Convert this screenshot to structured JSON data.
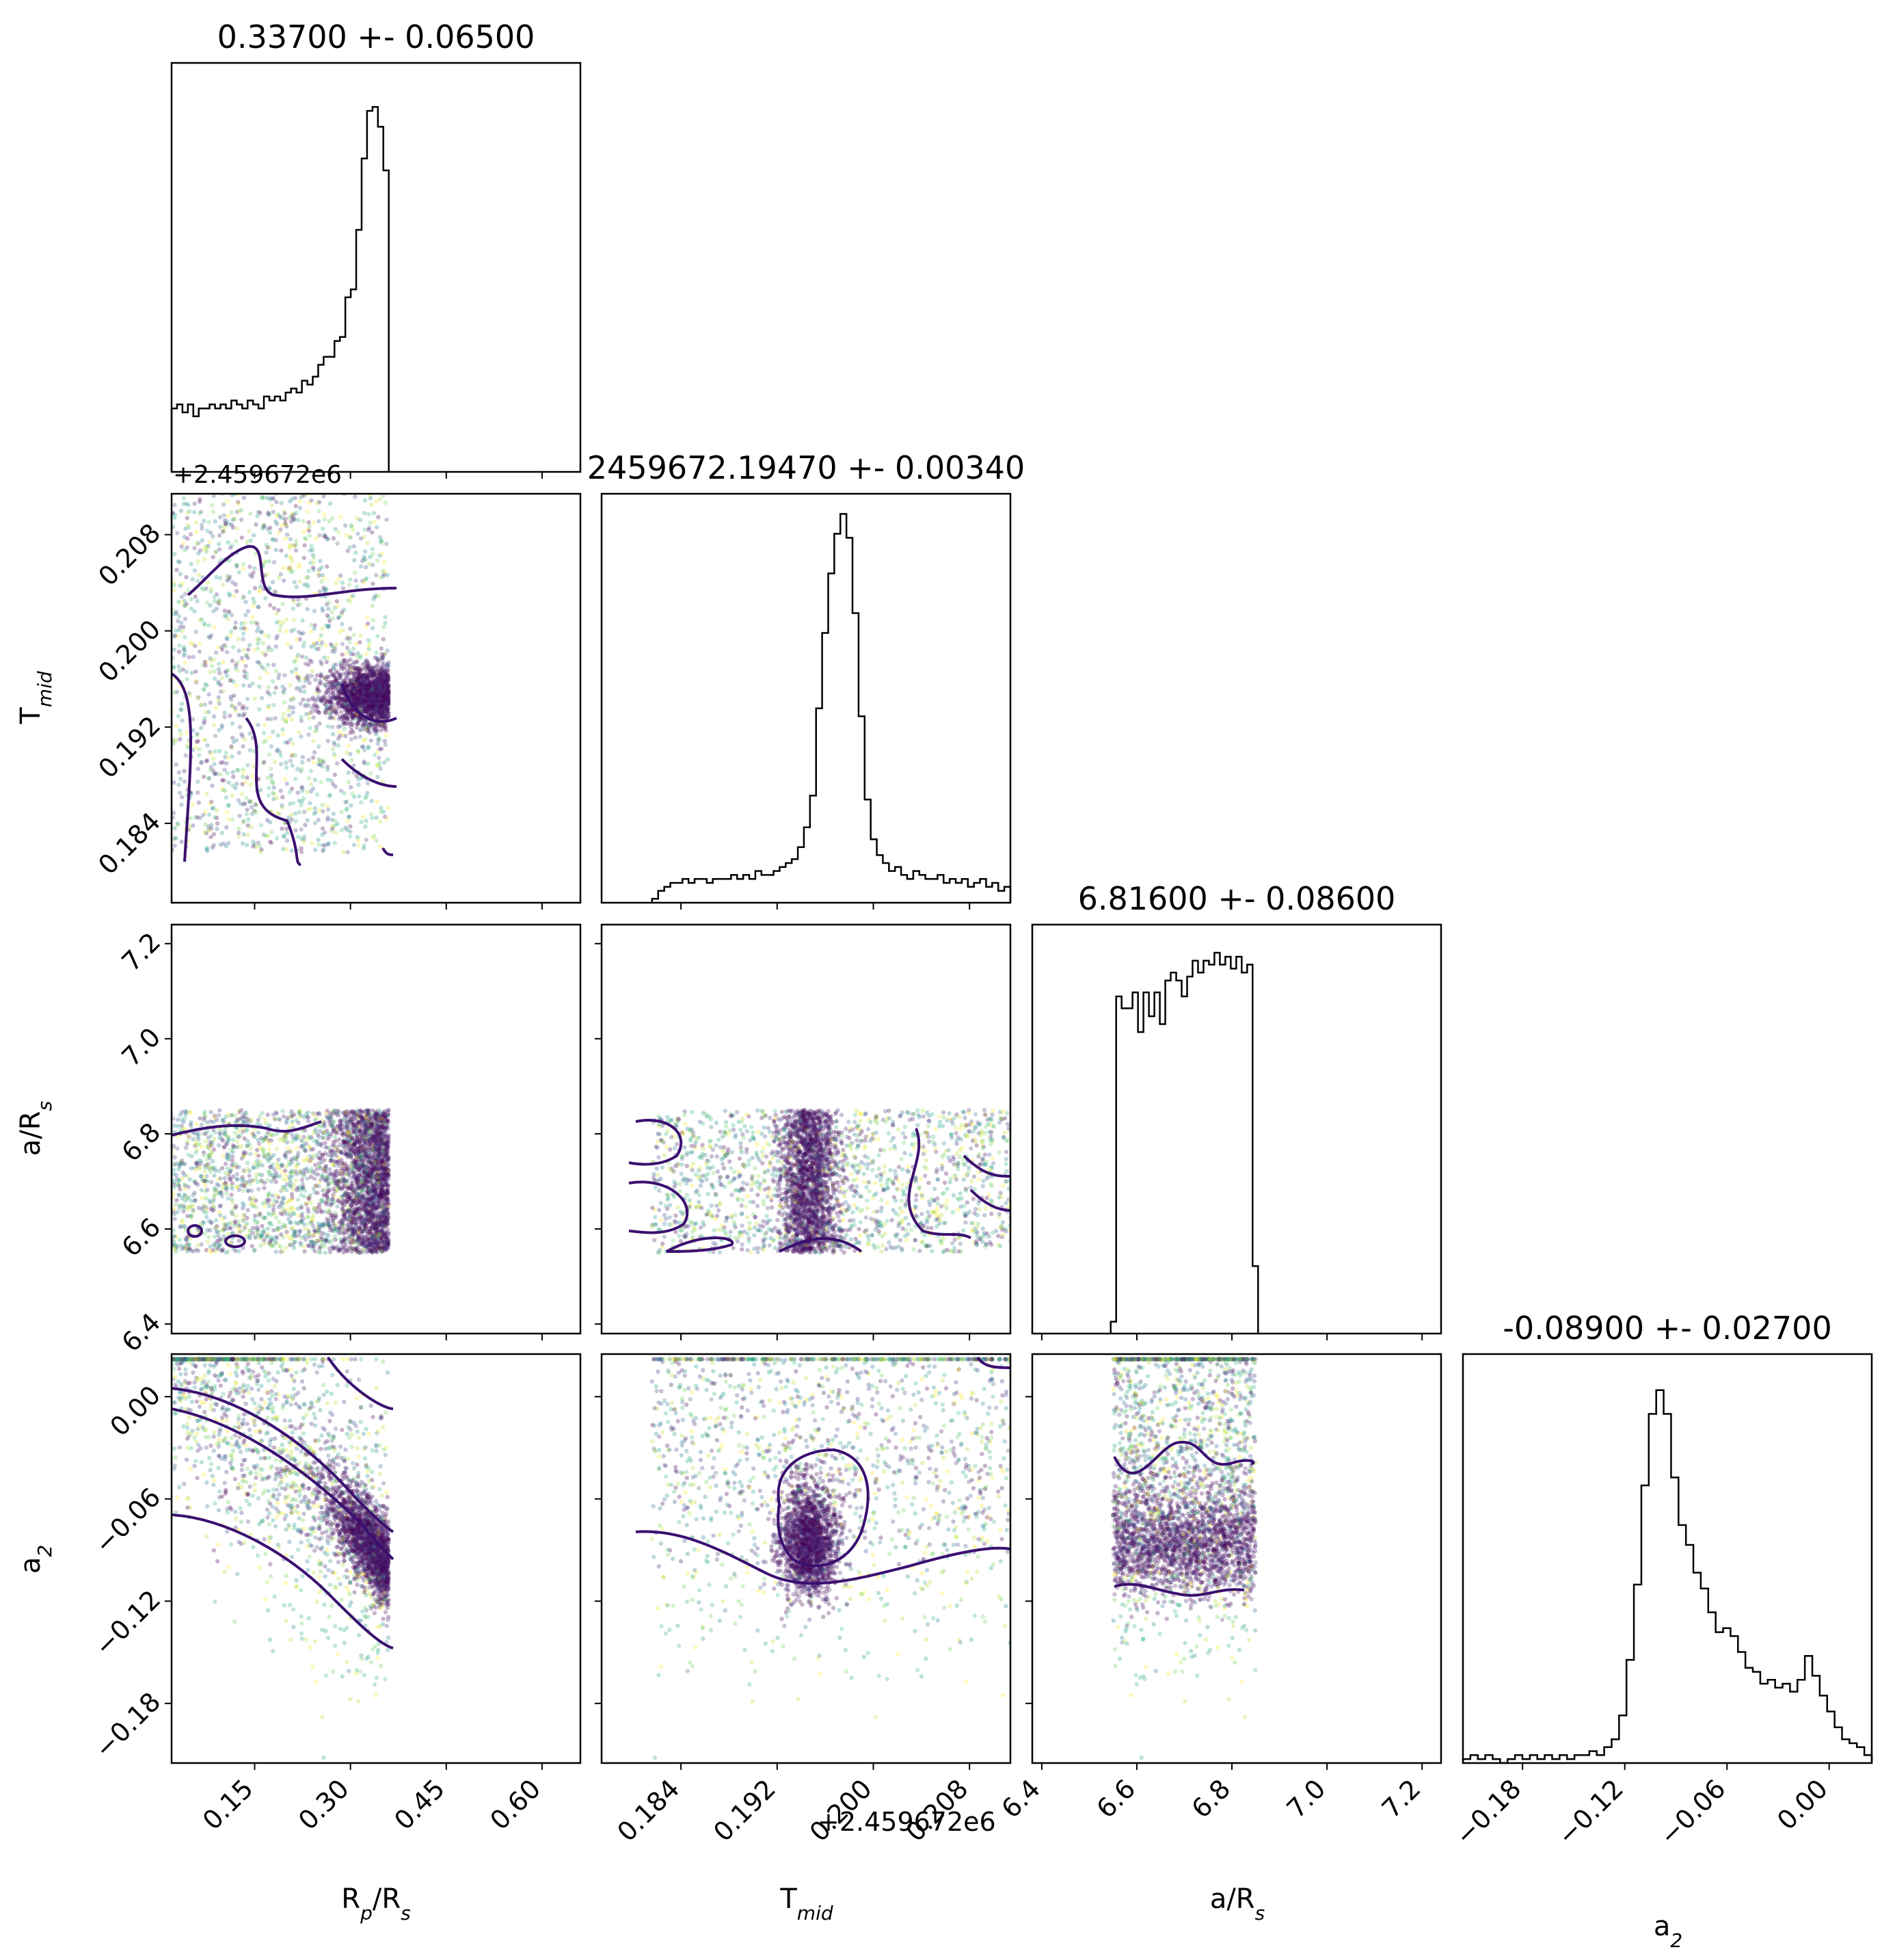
{
  "chart_data": {
    "type": "corner",
    "parameters": [
      {
        "key": "rp",
        "label": "R",
        "label_sub": "p",
        "label_tail": "/R",
        "label_tail_sub": "s",
        "title": "0.33700 +- 0.06500",
        "range": [
          0.02,
          0.66
        ],
        "ticks": [
          0.15,
          0.3,
          0.45,
          0.6
        ],
        "tick_labels": [
          "0.15",
          "0.30",
          "0.45",
          "0.60"
        ],
        "offset_label": "",
        "hist": [
          0.16,
          0.17,
          0.15,
          0.17,
          0.14,
          0.16,
          0.16,
          0.17,
          0.16,
          0.17,
          0.16,
          0.18,
          0.17,
          0.16,
          0.18,
          0.17,
          0.16,
          0.19,
          0.18,
          0.19,
          0.18,
          0.2,
          0.21,
          0.2,
          0.23,
          0.22,
          0.24,
          0.27,
          0.29,
          0.29,
          0.33,
          0.34,
          0.44,
          0.46,
          0.61,
          0.79,
          0.91,
          0.92,
          0.87,
          0.76
        ],
        "hist_range": [
          0.02,
          0.36
        ]
      },
      {
        "key": "tmid",
        "label": "T",
        "label_sub": "mid",
        "label_tail": "",
        "label_tail_sub": "",
        "title": "2459672.19470 +- 0.00340",
        "range": [
          0.1774,
          0.2114
        ],
        "ticks": [
          0.184,
          0.192,
          0.2,
          0.208
        ],
        "tick_labels": [
          "0.184",
          "0.192",
          "0.200",
          "0.208"
        ],
        "offset_label": "+2.459672e6",
        "hist": [
          0.01,
          0.03,
          0.04,
          0.05,
          0.05,
          0.06,
          0.05,
          0.06,
          0.06,
          0.05,
          0.06,
          0.06,
          0.06,
          0.07,
          0.06,
          0.07,
          0.06,
          0.08,
          0.07,
          0.07,
          0.08,
          0.09,
          0.1,
          0.11,
          0.14,
          0.19,
          0.27,
          0.49,
          0.68,
          0.83,
          0.93,
          0.98,
          0.92,
          0.73,
          0.47,
          0.26,
          0.16,
          0.12,
          0.1,
          0.08,
          0.09,
          0.07,
          0.06,
          0.08,
          0.07,
          0.06,
          0.06,
          0.07,
          0.05,
          0.06,
          0.05,
          0.06,
          0.04,
          0.05,
          0.06,
          0.04,
          0.05,
          0.03,
          0.04
        ],
        "hist_range": [
          0.1816,
          0.2114
        ]
      },
      {
        "key": "ars",
        "label": "a/R",
        "label_sub": "s",
        "label_tail": "",
        "label_tail_sub": "",
        "title": "6.81600 +- 0.08600",
        "range": [
          6.38,
          7.24
        ],
        "ticks": [
          6.4,
          6.6,
          6.8,
          7.0,
          7.2
        ],
        "tick_labels": [
          "6.4",
          "6.6",
          "6.8",
          "7.0",
          "7.2"
        ],
        "offset_label": "",
        "hist": [
          0.03,
          0.85,
          0.82,
          0.82,
          0.86,
          0.76,
          0.86,
          0.8,
          0.86,
          0.78,
          0.89,
          0.91,
          0.89,
          0.85,
          0.9,
          0.94,
          0.91,
          0.94,
          0.93,
          0.96,
          0.93,
          0.95,
          0.92,
          0.95,
          0.91,
          0.93,
          0.17
        ],
        "hist_range": [
          6.545,
          6.855
        ]
      },
      {
        "key": "a2",
        "label": "a",
        "label_sub": "2",
        "label_tail": "",
        "label_tail_sub": "",
        "title": "-0.08900 +- 0.02700",
        "range": [
          -0.215,
          0.025
        ],
        "ticks": [
          -0.18,
          -0.12,
          -0.06,
          0.0
        ],
        "tick_labels": [
          "−0.18",
          "−0.12",
          "−0.06",
          "0.00"
        ],
        "offset_label": "",
        "hist": [
          0.01,
          0.02,
          0.01,
          0.02,
          0.01,
          0.0,
          0.01,
          0.02,
          0.01,
          0.02,
          0.01,
          0.02,
          0.01,
          0.02,
          0.01,
          0.02,
          0.02,
          0.03,
          0.02,
          0.04,
          0.06,
          0.12,
          0.26,
          0.45,
          0.7,
          0.88,
          0.94,
          0.88,
          0.72,
          0.6,
          0.55,
          0.48,
          0.44,
          0.38,
          0.33,
          0.34,
          0.32,
          0.28,
          0.24,
          0.23,
          0.2,
          0.21,
          0.19,
          0.2,
          0.18,
          0.21,
          0.27,
          0.22,
          0.17,
          0.13,
          0.09,
          0.06,
          0.05,
          0.04,
          0.02
        ],
        "hist_range": [
          -0.215,
          0.025
        ]
      }
    ],
    "offset_label_row1": "+2.459672e6",
    "offset_label_xaxis": "+2.459672e6",
    "point_colormap": "viridis",
    "contour_color": "#3b0f70",
    "hist_color": "#000000"
  }
}
